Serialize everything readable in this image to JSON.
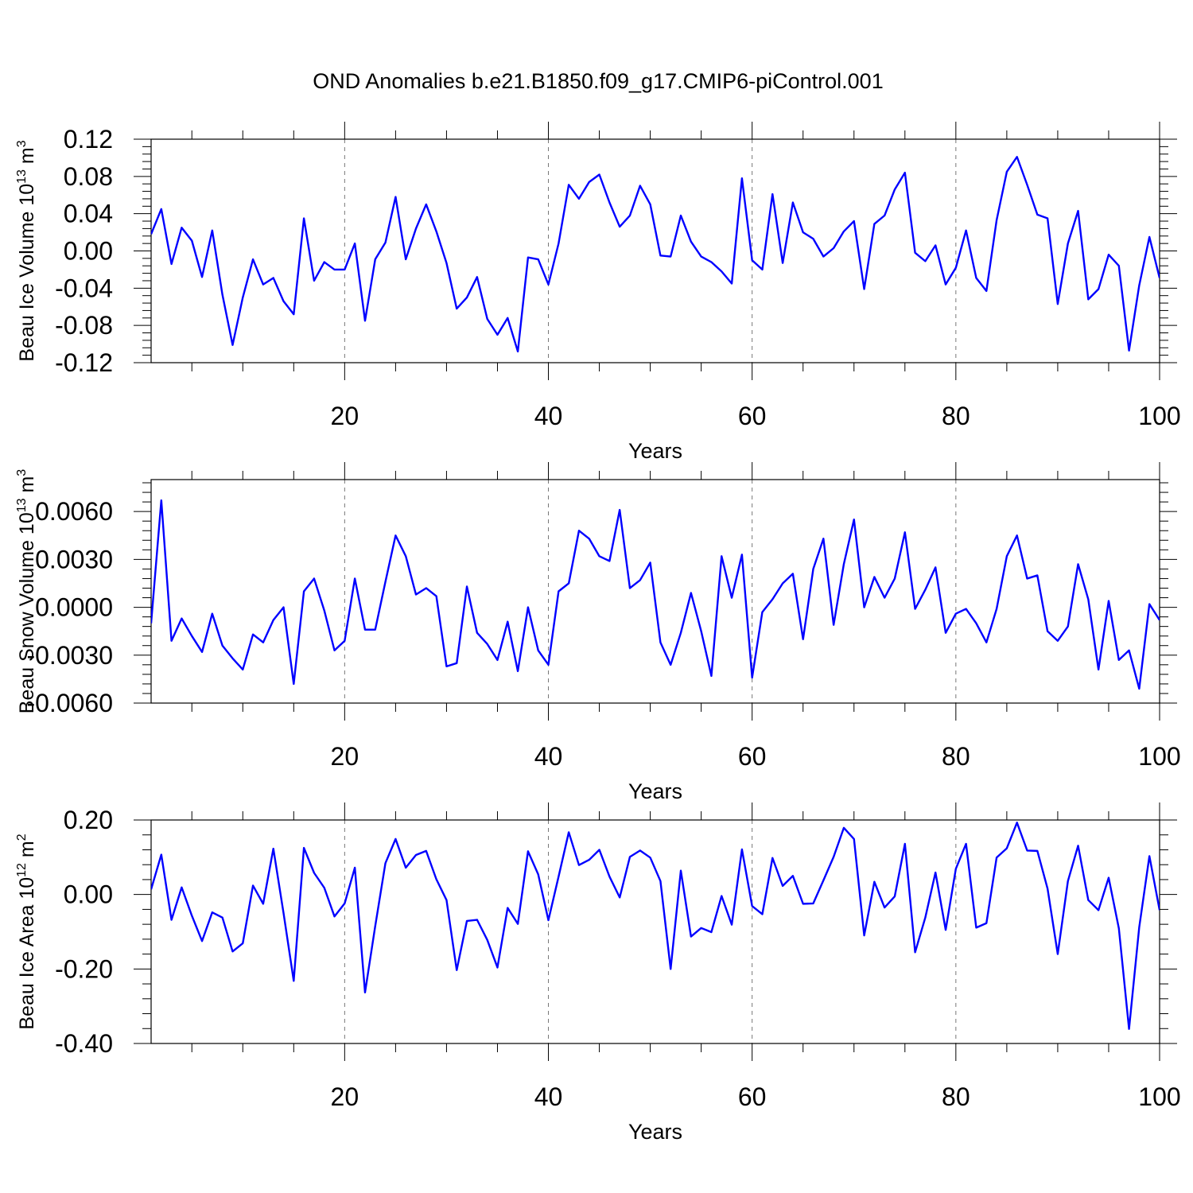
{
  "figure": {
    "title": "OND Anomalies b.e21.B1850.f09_g17.CMIP6-piControl.001",
    "line_color": "#0000ff",
    "axis_color": "#000000",
    "grid": "dashed vertical at 20, 40, 60, 80",
    "font": "sans-serif"
  },
  "chart_data": [
    {
      "type": "line",
      "xlabel": "Years",
      "ylabel": "Beau Ice Volume 10",
      "ylabel_sup": "13",
      "ylabel_unit": " m",
      "ylabel_unit_sup": "3",
      "xlim": [
        1,
        100
      ],
      "ylim": [
        -0.12,
        0.12
      ],
      "xticks": [
        20,
        40,
        60,
        80,
        100
      ],
      "xtick_labels": [
        "20",
        "40",
        "60",
        "80",
        "100"
      ],
      "yticks": [
        -0.12,
        -0.08,
        -0.04,
        0.0,
        0.04,
        0.08,
        0.12
      ],
      "ytick_labels": [
        "-0.12",
        "-0.08",
        "-0.04",
        "0.00",
        "0.04",
        "0.08",
        "0.12"
      ],
      "series": [
        {
          "color": "#0000ff",
          "x_start": 1,
          "values": [
            0.018,
            0.045,
            -0.014,
            0.025,
            0.011,
            -0.028,
            0.022,
            -0.047,
            -0.101,
            -0.05,
            -0.009,
            -0.036,
            -0.029,
            -0.054,
            -0.068,
            0.035,
            -0.032,
            -0.012,
            -0.02,
            -0.02,
            0.008,
            -0.075,
            -0.009,
            0.009,
            0.058,
            -0.009,
            0.024,
            0.05,
            0.021,
            -0.013,
            -0.062,
            -0.05,
            -0.028,
            -0.073,
            -0.09,
            -0.072,
            -0.108,
            -0.007,
            -0.009,
            -0.036,
            0.008,
            0.071,
            0.056,
            0.074,
            0.082,
            0.052,
            0.026,
            0.038,
            0.07,
            0.05,
            -0.005,
            -0.006,
            0.038,
            0.01,
            -0.006,
            -0.012,
            -0.022,
            -0.035,
            0.078,
            -0.01,
            -0.02,
            0.061,
            -0.013,
            0.052,
            0.02,
            0.013,
            -0.006,
            0.003,
            0.021,
            0.032,
            -0.041,
            0.029,
            0.038,
            0.066,
            0.084,
            -0.002,
            -0.011,
            0.006,
            -0.036,
            -0.018,
            0.022,
            -0.029,
            -0.043,
            0.033,
            0.085,
            0.101,
            0.071,
            0.039,
            0.035,
            -0.057,
            0.008,
            0.043,
            -0.052,
            -0.041,
            -0.004,
            -0.016,
            -0.107,
            -0.037,
            0.015,
            -0.029
          ]
        }
      ]
    },
    {
      "type": "line",
      "xlabel": "Years",
      "ylabel": "Beau Snow Volume 10",
      "ylabel_sup": "13",
      "ylabel_unit": " m",
      "ylabel_unit_sup": "3",
      "xlim": [
        1,
        100
      ],
      "ylim": [
        -0.006,
        0.008
      ],
      "xticks": [
        20,
        40,
        60,
        80,
        100
      ],
      "xtick_labels": [
        "20",
        "40",
        "60",
        "80",
        "100"
      ],
      "yticks": [
        -0.006,
        -0.003,
        0.0,
        0.003,
        0.006
      ],
      "ytick_labels": [
        "-0.0060",
        "-0.0030",
        "0.0000",
        "0.0030",
        "0.0060"
      ],
      "series": [
        {
          "color": "#0000ff",
          "x_start": 1,
          "values": [
            -0.001,
            0.0067,
            -0.0021,
            -0.0007,
            -0.0018,
            -0.0028,
            -0.0004,
            -0.0024,
            -0.0032,
            -0.0039,
            -0.0017,
            -0.0022,
            -0.0008,
            0.0,
            -0.0048,
            0.001,
            0.0018,
            -0.0002,
            -0.0027,
            -0.0021,
            0.0018,
            -0.0014,
            -0.0014,
            0.0016,
            0.0045,
            0.0032,
            0.0008,
            0.0012,
            0.0007,
            -0.0037,
            -0.0035,
            0.0013,
            -0.0016,
            -0.0023,
            -0.0033,
            -0.0009,
            -0.004,
            0.0,
            -0.0027,
            -0.0036,
            0.001,
            0.0015,
            0.0048,
            0.0043,
            0.0032,
            0.0029,
            0.0061,
            0.0012,
            0.0017,
            0.0028,
            -0.0022,
            -0.0036,
            -0.0016,
            0.0009,
            -0.0015,
            -0.0043,
            0.0032,
            0.0006,
            0.0033,
            -0.0044,
            -0.0003,
            0.0005,
            0.0015,
            0.0021,
            -0.002,
            0.0024,
            0.0043,
            -0.0011,
            0.0027,
            0.0055,
            0.0,
            0.0019,
            0.0006,
            0.0018,
            0.0047,
            -0.0001,
            0.0011,
            0.0025,
            -0.0016,
            -0.0004,
            -0.0001,
            -0.001,
            -0.0022,
            -0.0001,
            0.0032,
            0.0045,
            0.0018,
            0.002,
            -0.0015,
            -0.0021,
            -0.0012,
            0.0027,
            0.0005,
            -0.0039,
            0.0004,
            -0.0033,
            -0.0027,
            -0.0051,
            0.0002,
            -0.0008
          ]
        }
      ]
    },
    {
      "type": "line",
      "xlabel": "Years",
      "ylabel": "Beau Ice Area 10",
      "ylabel_sup": "12",
      "ylabel_unit": " m",
      "ylabel_unit_sup": "2",
      "xlim": [
        1,
        100
      ],
      "ylim": [
        -0.4,
        0.2
      ],
      "xticks": [
        20,
        40,
        60,
        80,
        100
      ],
      "xtick_labels": [
        "20",
        "40",
        "60",
        "80",
        "100"
      ],
      "yticks": [
        -0.4,
        -0.2,
        0.0,
        0.2
      ],
      "ytick_labels": [
        "-0.40",
        "-0.20",
        "0.00",
        "0.20"
      ],
      "series": [
        {
          "color": "#0000ff",
          "x_start": 1,
          "values": [
            0.014,
            0.107,
            -0.068,
            0.019,
            -0.057,
            -0.125,
            -0.048,
            -0.062,
            -0.153,
            -0.131,
            0.024,
            -0.025,
            0.123,
            -0.05,
            -0.232,
            0.125,
            0.058,
            0.018,
            -0.059,
            -0.024,
            0.072,
            -0.263,
            -0.085,
            0.084,
            0.149,
            0.072,
            0.106,
            0.117,
            0.041,
            -0.015,
            -0.203,
            -0.071,
            -0.068,
            -0.122,
            -0.196,
            -0.036,
            -0.079,
            0.116,
            0.054,
            -0.069,
            0.048,
            0.167,
            0.079,
            0.093,
            0.12,
            0.048,
            -0.008,
            0.101,
            0.118,
            0.099,
            0.036,
            -0.2,
            0.064,
            -0.113,
            -0.09,
            -0.101,
            -0.004,
            -0.081,
            0.121,
            -0.031,
            -0.053,
            0.098,
            0.023,
            0.05,
            -0.025,
            -0.024,
            0.038,
            0.101,
            0.179,
            0.149,
            -0.11,
            0.034,
            -0.035,
            -0.005,
            0.136,
            -0.155,
            -0.062,
            0.059,
            -0.095,
            0.069,
            0.136,
            -0.089,
            -0.077,
            0.099,
            0.124,
            0.193,
            0.118,
            0.117,
            0.016,
            -0.16,
            0.036,
            0.131,
            -0.015,
            -0.042,
            0.045,
            -0.091,
            -0.361,
            -0.088,
            0.103,
            -0.042
          ]
        }
      ]
    }
  ]
}
